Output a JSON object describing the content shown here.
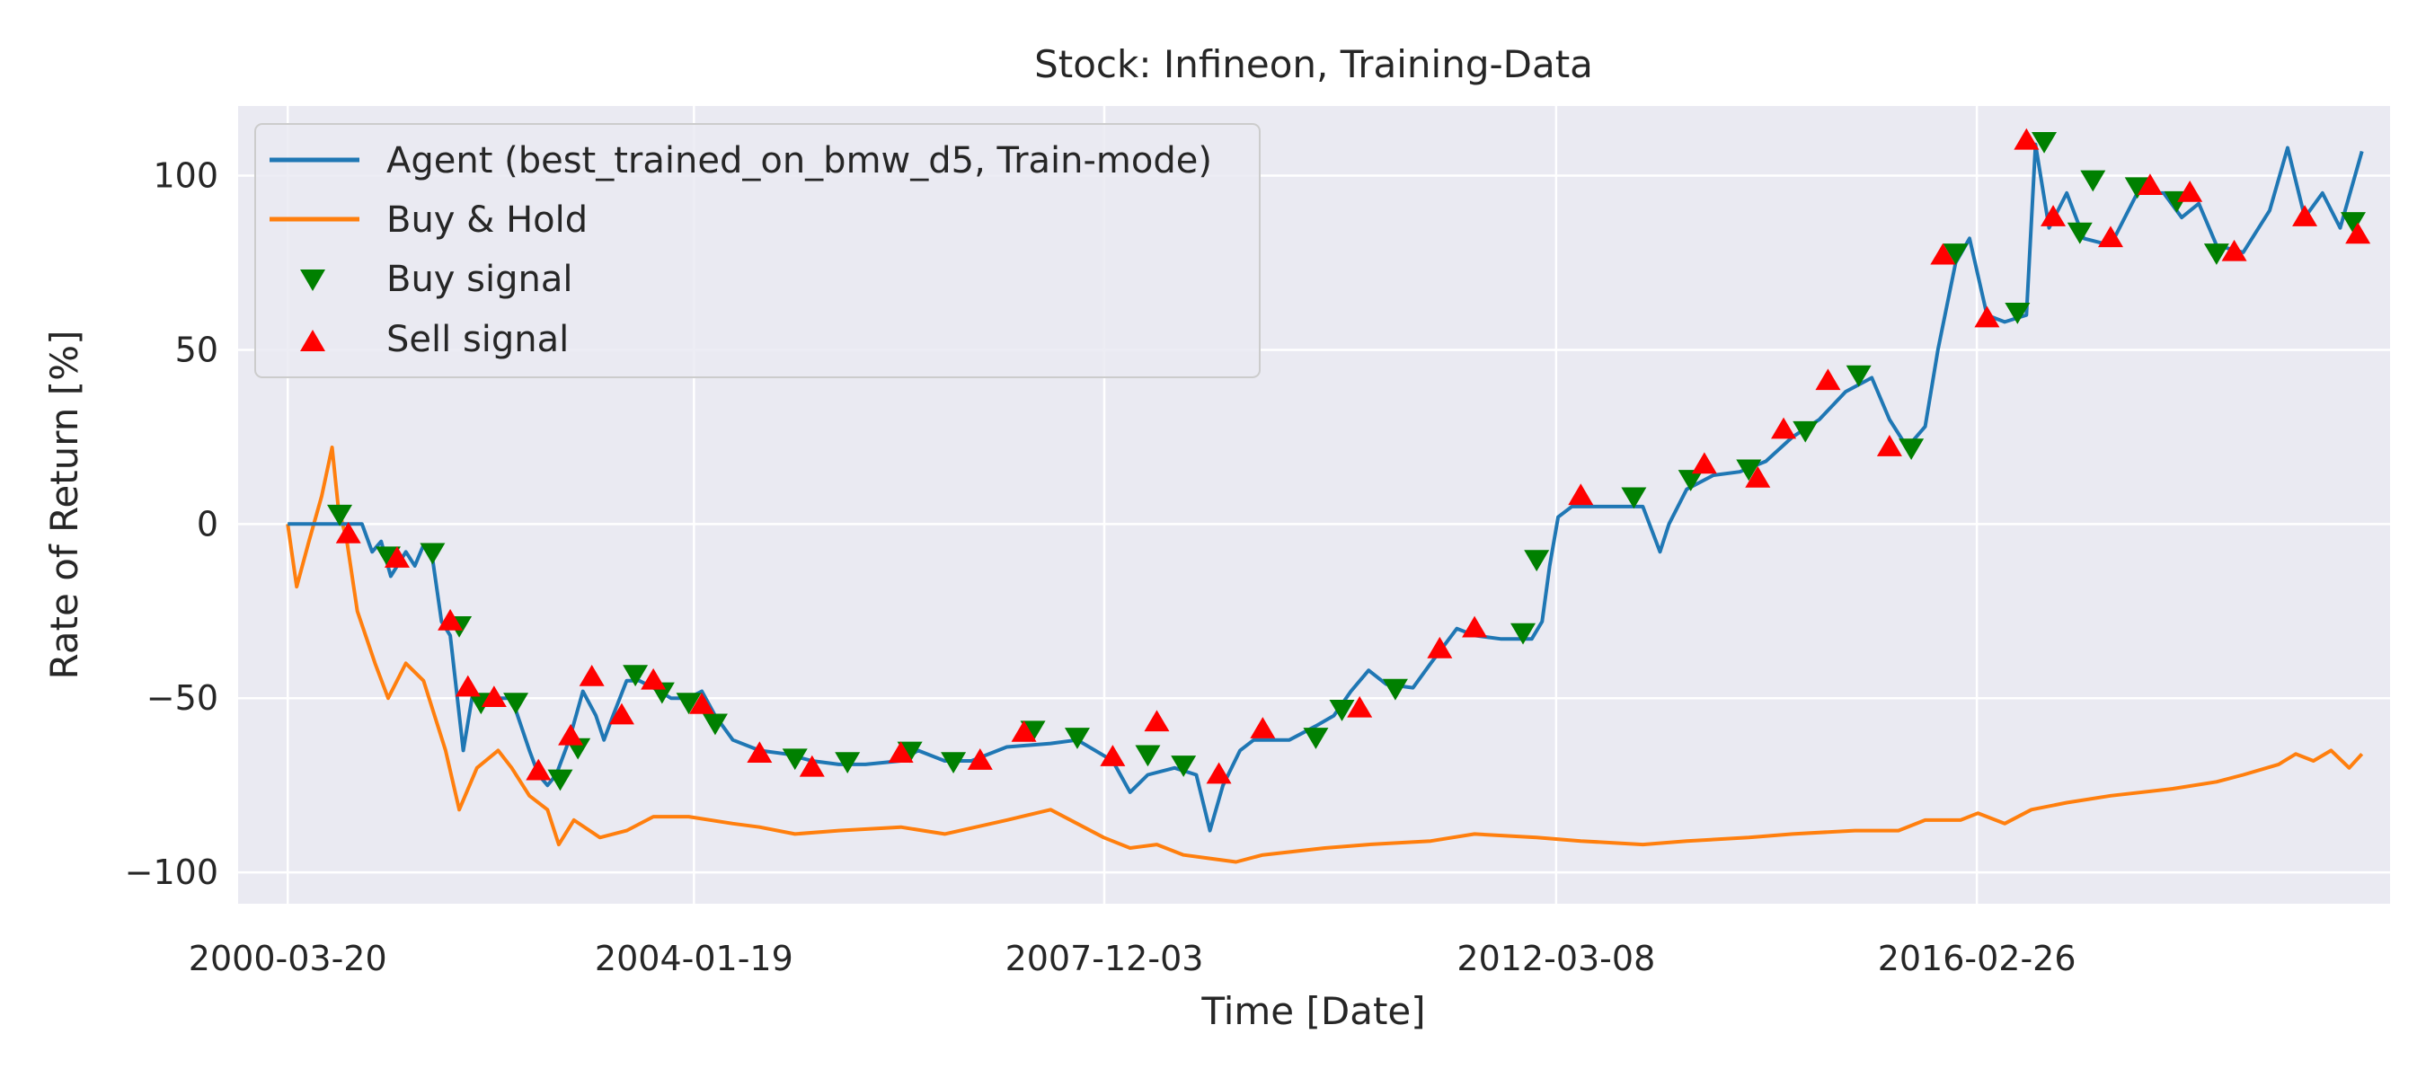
{
  "chart_data": {
    "type": "line",
    "title": "Stock: Infineon, Training-Data",
    "xlabel": "Time [Date]",
    "ylabel": "Rate of Return [%]",
    "x_tick_labels": [
      "2000-03-20",
      "2004-01-19",
      "2007-12-03",
      "2012-03-08",
      "2016-02-26"
    ],
    "y_ticks": [
      -100,
      -50,
      0,
      50,
      100
    ],
    "xlim": [
      "1999-10-01",
      "2020-01-20"
    ],
    "ylim": [
      -109,
      120
    ],
    "grid": true,
    "legend_position": "upper-left",
    "legend": [
      {
        "label": "Agent (best_trained_on_bmw_d5, Train-mode)",
        "kind": "line",
        "color": "#1f77b4"
      },
      {
        "label": "Buy & Hold",
        "kind": "line",
        "color": "#ff7f0e"
      },
      {
        "label": "Buy signal",
        "kind": "triangle-down",
        "color": "#008000"
      },
      {
        "label": "Sell signal",
        "kind": "triangle-up",
        "color": "#ff0000"
      }
    ],
    "series": [
      {
        "name": "Agent (best_trained_on_bmw_d5, Train-mode)",
        "color": "#1f77b4",
        "points": [
          [
            "2000-03-20",
            0
          ],
          [
            "2000-08-15",
            0
          ],
          [
            "2000-12-01",
            0
          ],
          [
            "2001-01-05",
            -8
          ],
          [
            "2001-02-05",
            -5
          ],
          [
            "2001-03-10",
            -15
          ],
          [
            "2001-05-01",
            -8
          ],
          [
            "2001-06-01",
            -12
          ],
          [
            "2001-07-01",
            -6
          ],
          [
            "2001-08-01",
            -10
          ],
          [
            "2001-09-01",
            -28
          ],
          [
            "2001-10-01",
            -32
          ],
          [
            "2001-11-15",
            -65
          ],
          [
            "2001-12-15",
            -50
          ],
          [
            "2002-02-01",
            -52
          ],
          [
            "2002-03-15",
            -50
          ],
          [
            "2002-05-01",
            -50
          ],
          [
            "2002-07-01",
            -65
          ],
          [
            "2002-08-01",
            -72
          ],
          [
            "2002-09-01",
            -75
          ],
          [
            "2002-10-01",
            -72
          ],
          [
            "2002-11-15",
            -62
          ],
          [
            "2003-01-01",
            -48
          ],
          [
            "2003-02-15",
            -55
          ],
          [
            "2003-03-15",
            -62
          ],
          [
            "2003-04-15",
            -55
          ],
          [
            "2003-06-01",
            -45
          ],
          [
            "2003-07-15",
            -45
          ],
          [
            "2003-09-01",
            -47
          ],
          [
            "2003-11-01",
            -50
          ],
          [
            "2004-01-01",
            -50
          ],
          [
            "2004-02-15",
            -48
          ],
          [
            "2004-04-01",
            -55
          ],
          [
            "2004-06-01",
            -62
          ],
          [
            "2004-09-01",
            -65
          ],
          [
            "2004-12-01",
            -66
          ],
          [
            "2005-03-01",
            -68
          ],
          [
            "2005-06-01",
            -69
          ],
          [
            "2005-09-01",
            -69
          ],
          [
            "2006-01-01",
            -68
          ],
          [
            "2006-03-01",
            -65
          ],
          [
            "2006-06-01",
            -68
          ],
          [
            "2006-09-01",
            -68
          ],
          [
            "2007-01-01",
            -64
          ],
          [
            "2007-06-01",
            -63
          ],
          [
            "2007-09-01",
            -62
          ],
          [
            "2008-01-01",
            -68
          ],
          [
            "2008-03-01",
            -77
          ],
          [
            "2008-05-01",
            -72
          ],
          [
            "2008-08-01",
            -70
          ],
          [
            "2008-10-15",
            -72
          ],
          [
            "2008-12-01",
            -88
          ],
          [
            "2009-01-15",
            -75
          ],
          [
            "2009-03-15",
            -65
          ],
          [
            "2009-05-01",
            -62
          ],
          [
            "2009-09-01",
            -62
          ],
          [
            "2009-12-01",
            -58
          ],
          [
            "2010-02-01",
            -55
          ],
          [
            "2010-04-01",
            -48
          ],
          [
            "2010-06-01",
            -42
          ],
          [
            "2010-08-01",
            -46
          ],
          [
            "2010-11-01",
            -47
          ],
          [
            "2011-01-01",
            -40
          ],
          [
            "2011-04-01",
            -30
          ],
          [
            "2011-06-01",
            -32
          ],
          [
            "2011-09-01",
            -33
          ],
          [
            "2011-12-15",
            -33
          ],
          [
            "2012-01-20",
            -28
          ],
          [
            "2012-02-15",
            -12
          ],
          [
            "2012-03-15",
            2
          ],
          [
            "2012-05-01",
            5
          ],
          [
            "2012-10-01",
            5
          ],
          [
            "2013-01-01",
            5
          ],
          [
            "2013-03-01",
            -8
          ],
          [
            "2013-04-01",
            0
          ],
          [
            "2013-06-01",
            10
          ],
          [
            "2013-09-01",
            14
          ],
          [
            "2013-12-01",
            15
          ],
          [
            "2014-03-01",
            18
          ],
          [
            "2014-06-01",
            25
          ],
          [
            "2014-09-01",
            30
          ],
          [
            "2014-12-01",
            38
          ],
          [
            "2015-03-01",
            42
          ],
          [
            "2015-05-01",
            30
          ],
          [
            "2015-07-01",
            22
          ],
          [
            "2015-09-01",
            28
          ],
          [
            "2015-10-15",
            50
          ],
          [
            "2015-12-15",
            75
          ],
          [
            "2016-02-01",
            82
          ],
          [
            "2016-04-01",
            60
          ],
          [
            "2016-06-01",
            58
          ],
          [
            "2016-08-15",
            60
          ],
          [
            "2016-09-15",
            109
          ],
          [
            "2016-11-01",
            85
          ],
          [
            "2017-01-01",
            95
          ],
          [
            "2017-03-01",
            82
          ],
          [
            "2017-06-01",
            80
          ],
          [
            "2017-09-01",
            95
          ],
          [
            "2017-12-01",
            95
          ],
          [
            "2018-02-01",
            88
          ],
          [
            "2018-04-01",
            92
          ],
          [
            "2018-06-01",
            80
          ],
          [
            "2018-09-01",
            78
          ],
          [
            "2018-12-01",
            90
          ],
          [
            "2019-02-01",
            108
          ],
          [
            "2019-04-01",
            88
          ],
          [
            "2019-06-01",
            95
          ],
          [
            "2019-08-01",
            85
          ],
          [
            "2019-10-15",
            107
          ]
        ]
      },
      {
        "name": "Buy & Hold",
        "color": "#ff7f0e",
        "points": [
          [
            "2000-03-20",
            0
          ],
          [
            "2000-04-20",
            -18
          ],
          [
            "2000-06-01",
            -5
          ],
          [
            "2000-07-15",
            8
          ],
          [
            "2000-08-20",
            22
          ],
          [
            "2000-09-10",
            5
          ],
          [
            "2000-10-10",
            -5
          ],
          [
            "2000-11-15",
            -25
          ],
          [
            "2001-01-15",
            -40
          ],
          [
            "2001-03-01",
            -50
          ],
          [
            "2001-05-01",
            -40
          ],
          [
            "2001-07-01",
            -45
          ],
          [
            "2001-09-15",
            -65
          ],
          [
            "2001-11-01",
            -82
          ],
          [
            "2002-01-01",
            -70
          ],
          [
            "2002-03-15",
            -65
          ],
          [
            "2002-05-01",
            -70
          ],
          [
            "2002-07-01",
            -78
          ],
          [
            "2002-09-01",
            -82
          ],
          [
            "2002-10-10",
            -92
          ],
          [
            "2002-12-01",
            -85
          ],
          [
            "2003-03-01",
            -90
          ],
          [
            "2003-06-01",
            -88
          ],
          [
            "2003-09-01",
            -84
          ],
          [
            "2004-01-01",
            -84
          ],
          [
            "2004-06-01",
            -86
          ],
          [
            "2004-09-01",
            -87
          ],
          [
            "2005-01-01",
            -89
          ],
          [
            "2005-06-01",
            -88
          ],
          [
            "2006-01-01",
            -87
          ],
          [
            "2006-06-01",
            -89
          ],
          [
            "2007-01-01",
            -85
          ],
          [
            "2007-06-01",
            -82
          ],
          [
            "2007-12-01",
            -90
          ],
          [
            "2008-03-01",
            -93
          ],
          [
            "2008-06-01",
            -92
          ],
          [
            "2008-09-01",
            -95
          ],
          [
            "2008-12-01",
            -96
          ],
          [
            "2009-03-01",
            -97
          ],
          [
            "2009-06-01",
            -95
          ],
          [
            "2010-01-01",
            -93
          ],
          [
            "2010-06-01",
            -92
          ],
          [
            "2011-01-01",
            -91
          ],
          [
            "2011-06-01",
            -89
          ],
          [
            "2012-01-01",
            -90
          ],
          [
            "2012-06-01",
            -91
          ],
          [
            "2013-01-01",
            -92
          ],
          [
            "2013-06-01",
            -91
          ],
          [
            "2014-01-01",
            -90
          ],
          [
            "2014-06-01",
            -89
          ],
          [
            "2015-01-01",
            -88
          ],
          [
            "2015-06-01",
            -88
          ],
          [
            "2015-09-01",
            -85
          ],
          [
            "2016-01-01",
            -85
          ],
          [
            "2016-03-01",
            -83
          ],
          [
            "2016-06-01",
            -86
          ],
          [
            "2016-09-01",
            -82
          ],
          [
            "2017-01-01",
            -80
          ],
          [
            "2017-06-01",
            -78
          ],
          [
            "2018-01-01",
            -76
          ],
          [
            "2018-06-01",
            -74
          ],
          [
            "2018-09-01",
            -72
          ],
          [
            "2019-01-01",
            -69
          ],
          [
            "2019-03-01",
            -66
          ],
          [
            "2019-05-01",
            -68
          ],
          [
            "2019-07-01",
            -65
          ],
          [
            "2019-09-01",
            -70
          ],
          [
            "2019-10-15",
            -66
          ]
        ]
      }
    ],
    "buy_signals": [
      [
        "2000-09-15",
        3
      ],
      [
        "2001-03-01",
        -9
      ],
      [
        "2001-08-01",
        -8
      ],
      [
        "2001-11-01",
        -29
      ],
      [
        "2002-01-15",
        -51
      ],
      [
        "2002-05-15",
        -51
      ],
      [
        "2002-10-15",
        -73
      ],
      [
        "2002-12-15",
        -64
      ],
      [
        "2003-07-01",
        -43
      ],
      [
        "2003-10-01",
        -48
      ],
      [
        "2004-01-01",
        -51
      ],
      [
        "2004-04-01",
        -57
      ],
      [
        "2005-01-01",
        -67
      ],
      [
        "2005-07-01",
        -68
      ],
      [
        "2006-02-01",
        -65
      ],
      [
        "2006-07-01",
        -68
      ],
      [
        "2007-04-01",
        -59
      ],
      [
        "2007-09-01",
        -61
      ],
      [
        "2008-05-01",
        -66
      ],
      [
        "2008-09-01",
        -69
      ],
      [
        "2009-12-01",
        -61
      ],
      [
        "2010-03-01",
        -53
      ],
      [
        "2010-09-01",
        -47
      ],
      [
        "2011-11-15",
        -31
      ],
      [
        "2012-01-01",
        -10
      ],
      [
        "2012-12-01",
        8
      ],
      [
        "2013-06-15",
        13
      ],
      [
        "2014-01-01",
        16
      ],
      [
        "2014-07-15",
        27
      ],
      [
        "2015-01-15",
        43
      ],
      [
        "2015-07-15",
        22
      ],
      [
        "2015-12-15",
        78
      ],
      [
        "2016-07-15",
        61
      ],
      [
        "2016-10-15",
        110
      ],
      [
        "2017-02-15",
        84
      ],
      [
        "2017-04-01",
        99
      ],
      [
        "2017-09-01",
        97
      ],
      [
        "2018-01-15",
        93
      ],
      [
        "2018-06-01",
        78
      ],
      [
        "2019-09-15",
        87
      ]
    ],
    "sell_signals": [
      [
        "2000-10-15",
        -3
      ],
      [
        "2001-04-01",
        -10
      ],
      [
        "2001-10-01",
        -28
      ],
      [
        "2001-12-01",
        -47
      ],
      [
        "2002-03-01",
        -50
      ],
      [
        "2002-08-01",
        -71
      ],
      [
        "2002-11-20",
        -61
      ],
      [
        "2003-02-01",
        -44
      ],
      [
        "2003-05-15",
        -55
      ],
      [
        "2003-09-01",
        -45
      ],
      [
        "2004-02-15",
        -52
      ],
      [
        "2004-09-01",
        -66
      ],
      [
        "2005-03-01",
        -70
      ],
      [
        "2006-01-01",
        -66
      ],
      [
        "2006-10-01",
        -68
      ],
      [
        "2007-03-01",
        -60
      ],
      [
        "2008-01-01",
        -67
      ],
      [
        "2008-06-01",
        -57
      ],
      [
        "2009-01-01",
        -72
      ],
      [
        "2009-06-01",
        -59
      ],
      [
        "2010-05-01",
        -53
      ],
      [
        "2011-02-01",
        -36
      ],
      [
        "2011-06-01",
        -30
      ],
      [
        "2012-06-01",
        8
      ],
      [
        "2013-08-01",
        17
      ],
      [
        "2014-02-01",
        13
      ],
      [
        "2014-05-01",
        27
      ],
      [
        "2014-10-01",
        41
      ],
      [
        "2015-05-01",
        22
      ],
      [
        "2015-11-01",
        77
      ],
      [
        "2016-04-01",
        59
      ],
      [
        "2016-08-15",
        110
      ],
      [
        "2016-11-15",
        88
      ],
      [
        "2017-06-01",
        82
      ],
      [
        "2017-10-15",
        97
      ],
      [
        "2018-03-01",
        95
      ],
      [
        "2018-08-01",
        78
      ],
      [
        "2019-04-01",
        88
      ],
      [
        "2019-10-01",
        83
      ]
    ]
  }
}
